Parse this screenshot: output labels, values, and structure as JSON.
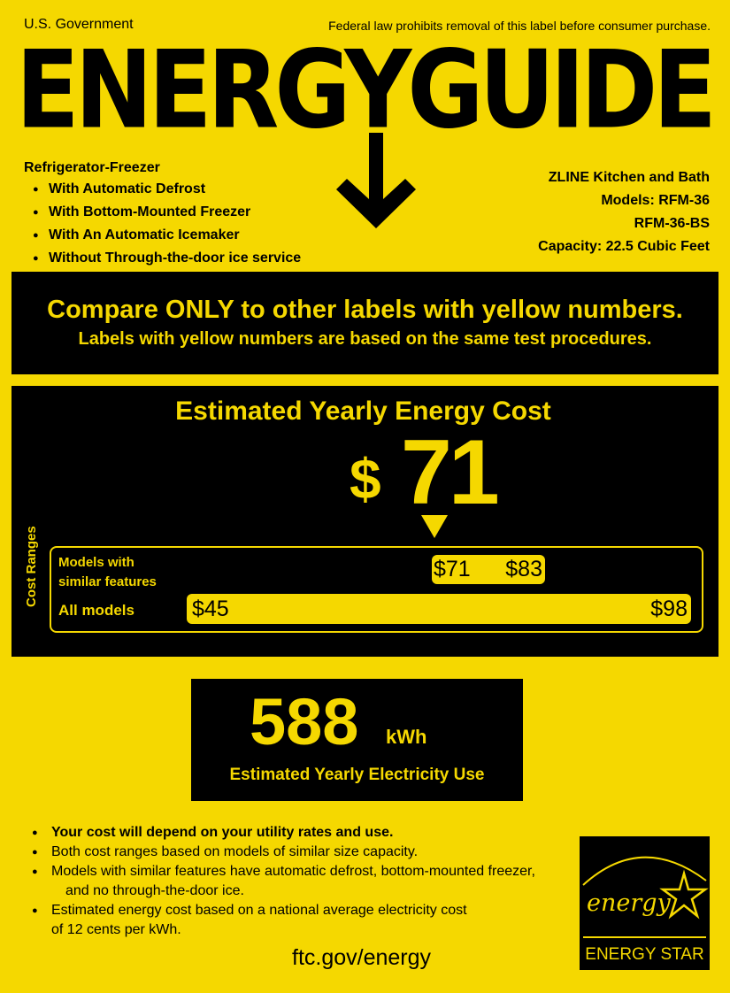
{
  "header": {
    "left": "U.S. Government",
    "right": "Federal law prohibits removal of this label before consumer purchase.",
    "title": "ENERGYGUIDE"
  },
  "product": {
    "type": "Refrigerator-Freezer",
    "features": [
      "With Automatic Defrost",
      "With Bottom-Mounted Freezer",
      "With An Automatic Icemaker",
      "Without Through-the-door ice service"
    ]
  },
  "manufacturer": {
    "name": "ZLINE Kitchen and Bath",
    "models_line": "Models: RFM-36",
    "model2": "RFM-36-BS",
    "capacity": "Capacity: 22.5 Cubic Feet"
  },
  "compare": {
    "line1": "Compare ONLY to other labels with yellow numbers.",
    "line2": "Labels with yellow numbers are based on the same test procedures."
  },
  "cost": {
    "title": "Estimated Yearly Energy Cost",
    "dollar": "$",
    "value": "71",
    "ranges_label": "Cost Ranges",
    "similar": {
      "label1": "Models with",
      "label2": "similar features",
      "low": "$71",
      "high": "$83"
    },
    "all": {
      "label": "All models",
      "low": "$45",
      "high": "$98"
    },
    "marker_value": 71
  },
  "electricity": {
    "value": "588",
    "unit": "kWh",
    "label": "Estimated Yearly Electricity Use"
  },
  "notes": [
    "Your cost will depend on your utility rates and use.",
    "Both cost ranges based on models of similar size capacity.",
    "Models with similar features have automatic defrost, bottom-mounted freezer,",
    "and no through-the-door ice.",
    "Estimated energy cost based on a national average electricity cost",
    "of 12 cents per kWh."
  ],
  "footer_link": "ftc.gov/energy",
  "energy_star": {
    "script": "energy",
    "label": "ENERGY STAR"
  },
  "colors": {
    "yellow": "#f5d800",
    "black": "#000000"
  }
}
